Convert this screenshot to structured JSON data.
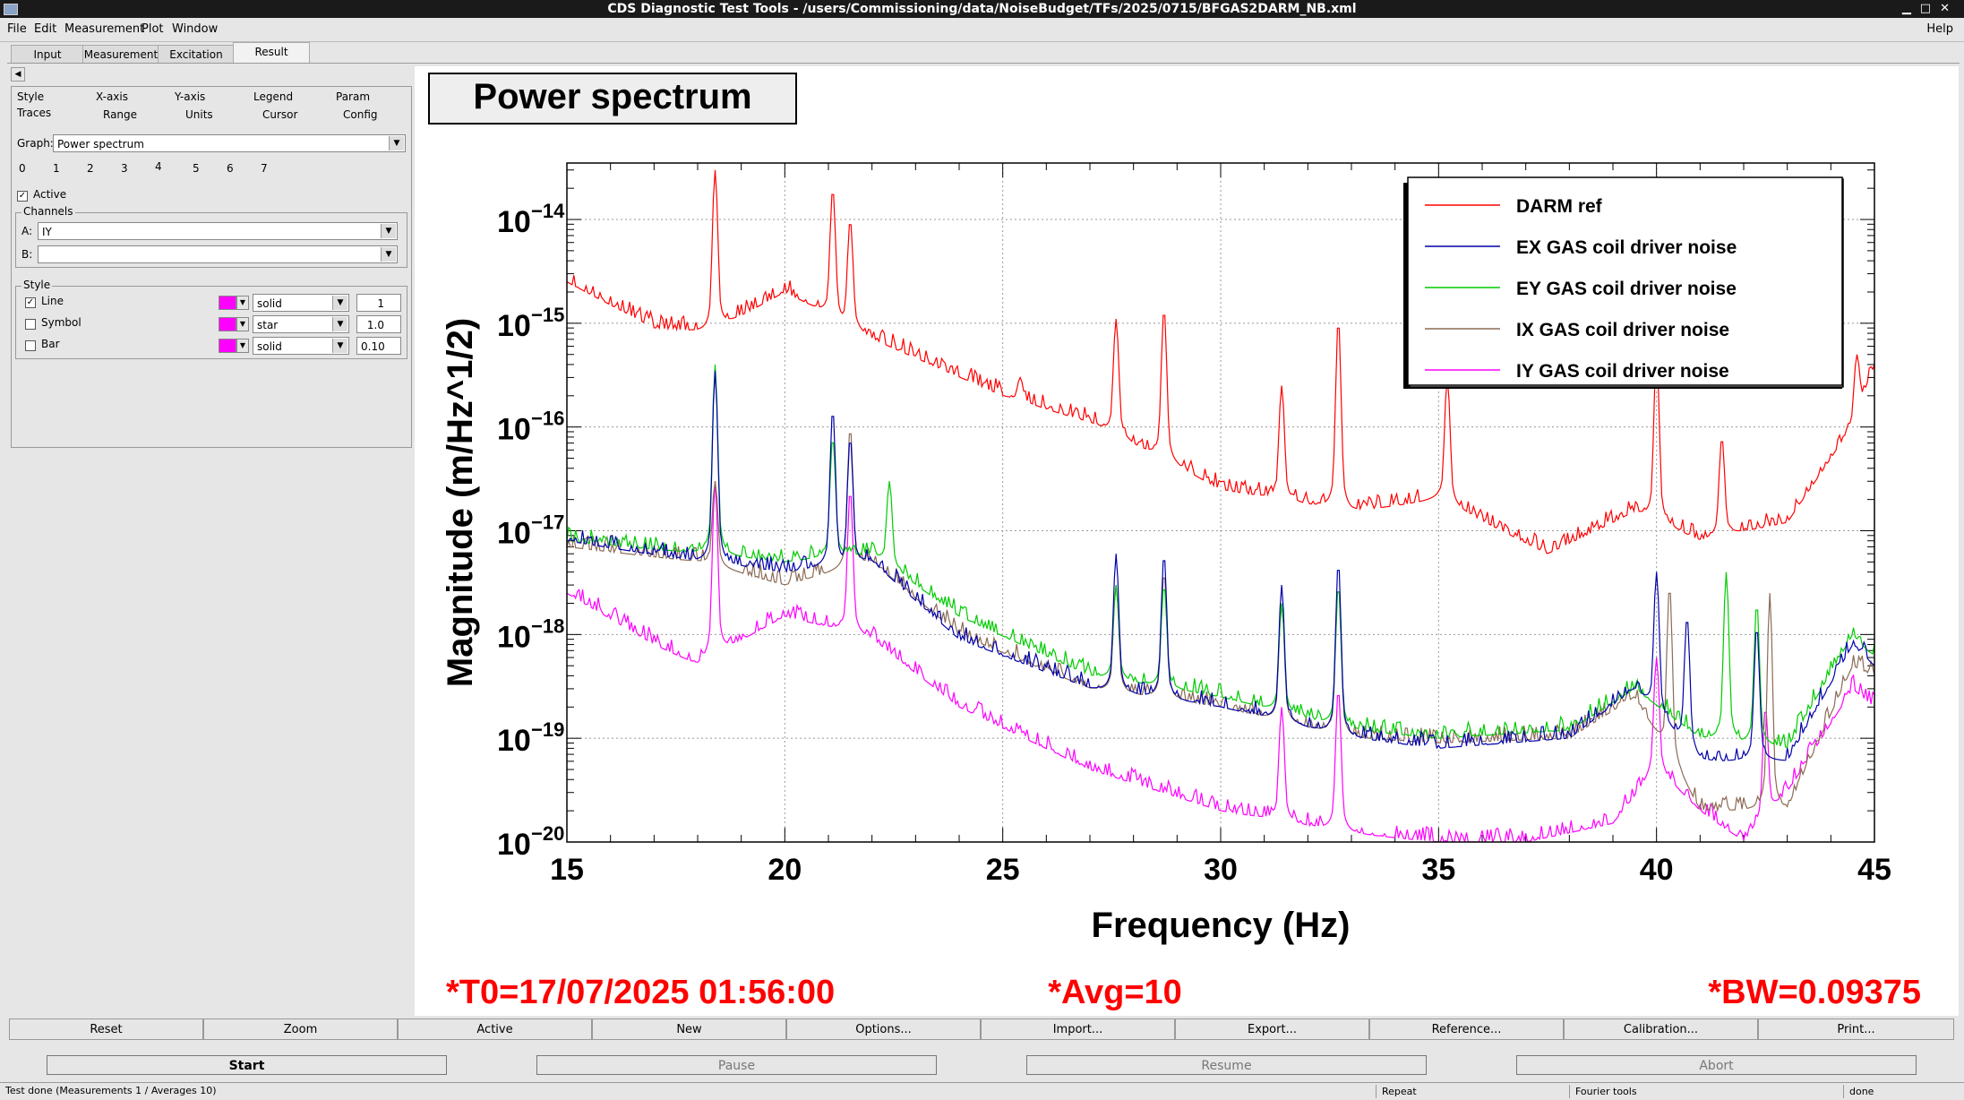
{
  "window": {
    "title": "CDS Diagnostic Test Tools - /users/Commissioning/data/NoiseBudget/TFs/2025/0715/BFGAS2DARM_NB.xml"
  },
  "menu": {
    "file": "File",
    "edit": "Edit",
    "measurement": "Measurement",
    "plot": "Plot",
    "window": "Window",
    "help": "Help"
  },
  "tabs": [
    "Input",
    "Measurement",
    "Excitation",
    "Result"
  ],
  "options_tabs_row1": [
    "Style",
    "X-axis",
    "Y-axis",
    "Legend",
    "Param"
  ],
  "options_tabs_row2": [
    "Traces",
    "Range",
    "Units",
    "Cursor",
    "Config"
  ],
  "graph": {
    "label": "Graph:",
    "value": "Power spectrum"
  },
  "trace_numbers": [
    "0",
    "1",
    "2",
    "3",
    "4",
    "5",
    "6",
    "7"
  ],
  "active": {
    "label": "Active",
    "checked": true
  },
  "channels": {
    "title": "Channels",
    "a_label": "A:",
    "a_value": "IY",
    "b_label": "B:",
    "b_value": ""
  },
  "style": {
    "title": "Style",
    "rows": [
      {
        "label": "Line",
        "checked": true,
        "type": "solid",
        "size": "1"
      },
      {
        "label": "Symbol",
        "checked": false,
        "type": "star",
        "size": "1.0"
      },
      {
        "label": "Bar",
        "checked": false,
        "type": "solid",
        "size": "0.10"
      }
    ],
    "color": "#ff00ff"
  },
  "plot": {
    "title": "Power spectrum",
    "t0": "*T0=17/07/2025 01:56:00",
    "avg": "*Avg=10",
    "bw": "*BW=0.09375"
  },
  "chart_data": {
    "type": "line",
    "title": "Power spectrum",
    "xlabel": "Frequency (Hz)",
    "ylabel": "Magnitude (m/Hz^1/2)",
    "xlim": [
      15,
      45
    ],
    "ylim": [
      1e-20,
      3.5e-14
    ],
    "log_y": true,
    "grid": true,
    "legend_position": "top-right",
    "x_ticks": [
      "15",
      "20",
      "25",
      "30",
      "35",
      "40",
      "45"
    ],
    "y_ticks": [
      "−14",
      "−15",
      "−16",
      "−17",
      "−18",
      "−19",
      "−20"
    ],
    "y_tick_base": "10",
    "series": [
      {
        "name": "DARM ref",
        "color": "#ff0000",
        "floor": [
          [
            15,
            2.5e-15
          ],
          [
            17,
            9e-16
          ],
          [
            18.3,
            8e-16
          ],
          [
            20,
            2e-15
          ],
          [
            22,
            7e-16
          ],
          [
            25,
            2e-16
          ],
          [
            27,
            1.1e-16
          ],
          [
            30,
            2.5e-17
          ],
          [
            33,
            1.5e-17
          ],
          [
            35,
            2e-17
          ],
          [
            37.5,
            6e-18
          ],
          [
            39.5,
            1.5e-17
          ],
          [
            41,
            8e-18
          ],
          [
            43,
            1.2e-17
          ],
          [
            44.5,
            1e-16
          ],
          [
            45,
            4e-16
          ]
        ],
        "peaks": [
          [
            18.4,
            3e-14
          ],
          [
            21.1,
            2e-14
          ],
          [
            21.5,
            1e-14
          ],
          [
            22.9,
            5e-16
          ],
          [
            25.4,
            3e-16
          ],
          [
            27.6,
            1.1e-15
          ],
          [
            28.7,
            1.4e-15
          ],
          [
            31.4,
            2.5e-16
          ],
          [
            32.7,
            1.1e-15
          ],
          [
            35.2,
            3e-16
          ],
          [
            40,
            5e-16
          ],
          [
            41.5,
            8e-17
          ],
          [
            44.6,
            5e-16
          ]
        ]
      },
      {
        "name": "EX GAS coil driver noise",
        "color": "#0000aa",
        "floor": [
          [
            15,
            8e-18
          ],
          [
            18,
            5e-18
          ],
          [
            20,
            4e-18
          ],
          [
            22,
            5e-18
          ],
          [
            24,
            9e-19
          ],
          [
            27,
            3e-19
          ],
          [
            30,
            2e-19
          ],
          [
            33,
            1e-19
          ],
          [
            35,
            8e-20
          ],
          [
            38,
            1e-19
          ],
          [
            39.5,
            3e-19
          ],
          [
            41,
            6e-20
          ],
          [
            43,
            6e-20
          ],
          [
            44.5,
            8e-19
          ],
          [
            45,
            5e-19
          ]
        ],
        "peaks": [
          [
            18.4,
            3.5e-16
          ],
          [
            21.1,
            1.5e-16
          ],
          [
            21.5,
            8e-17
          ],
          [
            27.6,
            6e-18
          ],
          [
            28.7,
            6e-18
          ],
          [
            31.4,
            3e-18
          ],
          [
            32.7,
            5e-18
          ],
          [
            40,
            4e-18
          ],
          [
            40.7,
            1.5e-18
          ],
          [
            42.3,
            1.2e-18
          ]
        ]
      },
      {
        "name": "EY GAS coil driver noise",
        "color": "#00cc00",
        "floor": [
          [
            15,
            8e-18
          ],
          [
            18,
            6e-18
          ],
          [
            20,
            5e-18
          ],
          [
            22,
            6e-18
          ],
          [
            24,
            1.5e-18
          ],
          [
            27,
            4e-19
          ],
          [
            30,
            2.5e-19
          ],
          [
            33,
            1.2e-19
          ],
          [
            35,
            1e-19
          ],
          [
            38,
            1.2e-19
          ],
          [
            39.5,
            3e-19
          ],
          [
            41,
            1e-19
          ],
          [
            43,
            8e-20
          ],
          [
            44.5,
            1e-18
          ],
          [
            45,
            6e-19
          ]
        ],
        "peaks": [
          [
            18.4,
            4e-16
          ],
          [
            21.1,
            8e-17
          ],
          [
            22.4,
            3e-17
          ],
          [
            27.6,
            3e-18
          ],
          [
            28.7,
            3e-18
          ],
          [
            31.4,
            2e-18
          ],
          [
            32.7,
            3e-18
          ],
          [
            41.6,
            4e-18
          ],
          [
            42.3,
            2e-18
          ]
        ]
      },
      {
        "name": "IX GAS coil driver noise",
        "color": "#8b6b55",
        "floor": [
          [
            15,
            7e-18
          ],
          [
            18,
            5e-18
          ],
          [
            20,
            3e-18
          ],
          [
            22,
            5e-18
          ],
          [
            24,
            1e-18
          ],
          [
            27,
            3e-19
          ],
          [
            30,
            2e-19
          ],
          [
            33,
            1e-19
          ],
          [
            35,
            9e-20
          ],
          [
            38,
            1e-19
          ],
          [
            39.5,
            2.5e-19
          ],
          [
            41,
            2e-20
          ],
          [
            43,
            2e-20
          ],
          [
            44.5,
            5e-19
          ],
          [
            45,
            4e-19
          ]
        ],
        "peaks": [
          [
            18.4,
            3e-17
          ],
          [
            21.5,
            1e-16
          ],
          [
            27.6,
            3e-18
          ],
          [
            28.7,
            4e-18
          ],
          [
            31.4,
            2e-18
          ],
          [
            32.7,
            3e-18
          ],
          [
            40.3,
            3e-18
          ],
          [
            42.6,
            2.5e-18
          ]
        ]
      },
      {
        "name": "IY GAS coil driver noise",
        "color": "#ff00ff",
        "floor": [
          [
            15,
            2.5e-18
          ],
          [
            17,
            8e-19
          ],
          [
            18,
            5e-19
          ],
          [
            20,
            1.5e-18
          ],
          [
            22,
            9e-19
          ],
          [
            24,
            2e-19
          ],
          [
            27,
            5e-20
          ],
          [
            30,
            2e-20
          ],
          [
            33,
            1.2e-20
          ],
          [
            35,
            1e-20
          ],
          [
            37,
            1e-20
          ],
          [
            39,
            1.5e-20
          ],
          [
            40,
            5e-20
          ],
          [
            41,
            2e-20
          ],
          [
            42,
            1e-20
          ],
          [
            43,
            3e-20
          ],
          [
            44.5,
            3e-19
          ],
          [
            45,
            2e-19
          ]
        ],
        "peaks": [
          [
            18.4,
            3e-17
          ],
          [
            21.5,
            2.5e-17
          ],
          [
            31.4,
            2e-19
          ],
          [
            32.7,
            3e-19
          ],
          [
            40,
            6e-19
          ],
          [
            42.5,
            2e-19
          ]
        ]
      }
    ]
  },
  "buttons_row": [
    "Reset",
    "Zoom",
    "Active",
    "New",
    "Options...",
    "Import...",
    "Export...",
    "Reference...",
    "Calibration...",
    "Print..."
  ],
  "control_buttons": [
    "Start",
    "Pause",
    "Resume",
    "Abort"
  ],
  "status": {
    "message": "Test done (Measurements 1 / Averages 10)",
    "repeat": "Repeat",
    "fourier": "Fourier tools",
    "done": "done"
  }
}
